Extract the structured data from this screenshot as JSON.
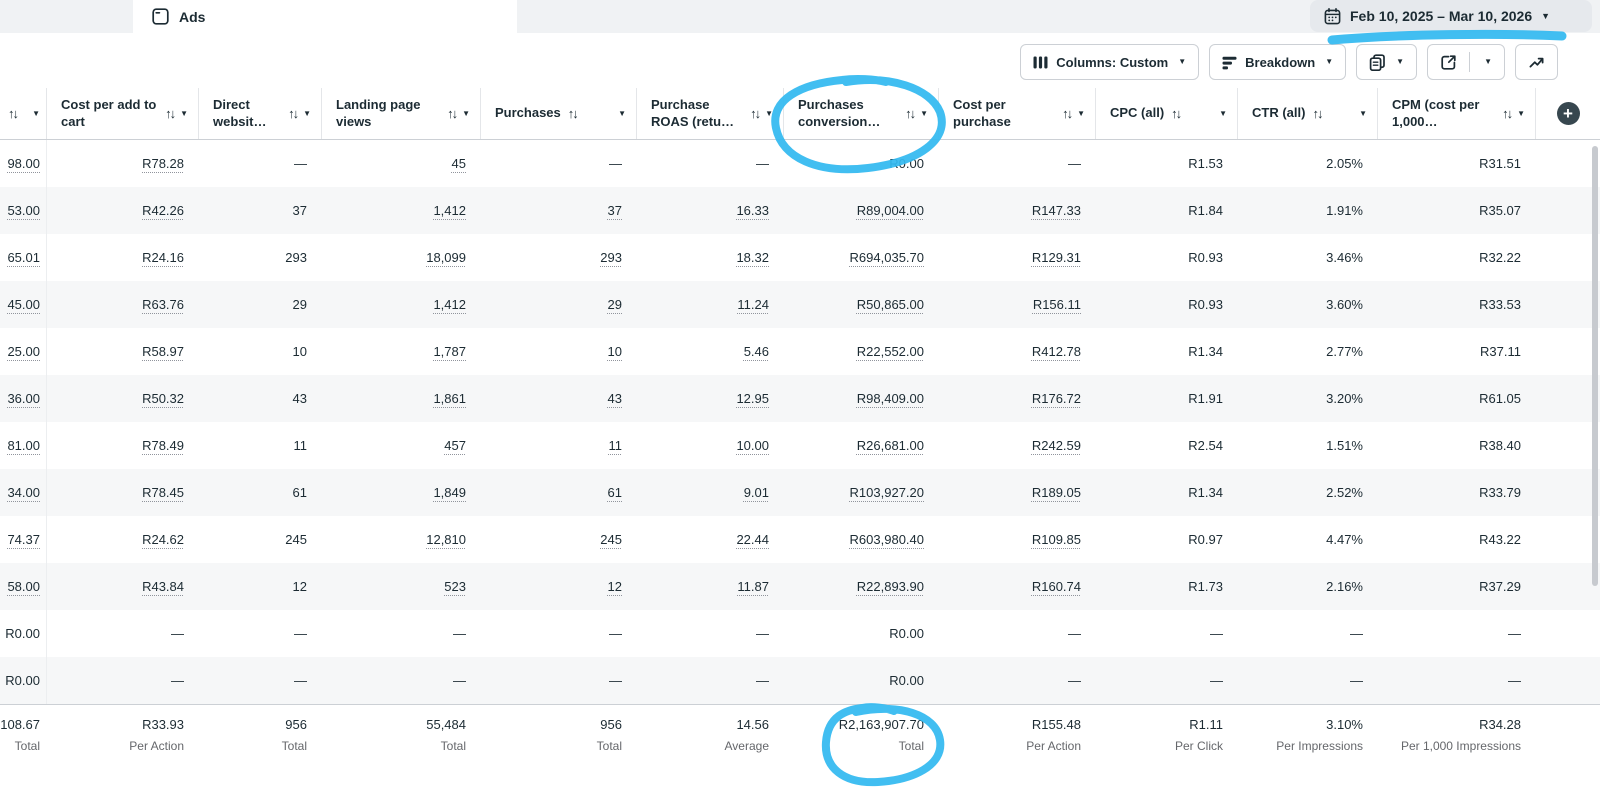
{
  "colors": {
    "annotation": "#33b9f0",
    "topbar_bg": "#f0f2f4",
    "stripe": "#f6f7f8",
    "header_text": "#1c2b33",
    "secondary_text": "#65676b"
  },
  "glyphs": {
    "sort": "↑↓",
    "caret": "▼",
    "plus": "+",
    "dash": "—"
  },
  "topbar": {
    "tab": {
      "label": "Ads",
      "icon": "ads-frame-icon"
    },
    "date_range": {
      "label": "Feb 10, 2025 – Mar 10, 2026",
      "icon": "calendar-icon"
    }
  },
  "toolbar": {
    "columns_label": "Columns: Custom",
    "breakdown_label": "Breakdown",
    "icons": [
      "columns-icon",
      "breakdown-icon",
      "duplicate-icon",
      "export-icon",
      "charts-icon"
    ]
  },
  "table": {
    "columns": [
      {
        "key": "frozen",
        "label": "",
        "linked": true
      },
      {
        "key": "cost-per-add-to-cart",
        "label": "Cost per add to cart",
        "linked": true
      },
      {
        "key": "direct-website",
        "label": "Direct websit…",
        "linked": false
      },
      {
        "key": "landing-page-views",
        "label": "Landing page views",
        "linked": true
      },
      {
        "key": "purchases",
        "label": "Purchases",
        "linked": true
      },
      {
        "key": "purchase-roas",
        "label": "Purchase ROAS (retu…",
        "linked": true
      },
      {
        "key": "purchases-conversion-value",
        "label": "Purchases conversion…",
        "linked": true
      },
      {
        "key": "cost-per-purchase",
        "label": "Cost per purchase",
        "linked": true
      },
      {
        "key": "cpc-all",
        "label": "CPC (all)",
        "linked": false
      },
      {
        "key": "ctr-all",
        "label": "CTR (all)",
        "linked": false
      },
      {
        "key": "cpm",
        "label": "CPM (cost per 1,000…",
        "linked": false
      }
    ],
    "rows": [
      [
        "98.00",
        "R78.28",
        "—",
        "45",
        "—",
        "—",
        "R0.00",
        "—",
        "R1.53",
        "2.05%",
        "R31.51"
      ],
      [
        "53.00",
        "R42.26",
        "37",
        "1,412",
        "37",
        "16.33",
        "R89,004.00",
        "R147.33",
        "R1.84",
        "1.91%",
        "R35.07"
      ],
      [
        "65.01",
        "R24.16",
        "293",
        "18,099",
        "293",
        "18.32",
        "R694,035.70",
        "R129.31",
        "R0.93",
        "3.46%",
        "R32.22"
      ],
      [
        "45.00",
        "R63.76",
        "29",
        "1,412",
        "29",
        "11.24",
        "R50,865.00",
        "R156.11",
        "R0.93",
        "3.60%",
        "R33.53"
      ],
      [
        "25.00",
        "R58.97",
        "10",
        "1,787",
        "10",
        "5.46",
        "R22,552.00",
        "R412.78",
        "R1.34",
        "2.77%",
        "R37.11"
      ],
      [
        "36.00",
        "R50.32",
        "43",
        "1,861",
        "43",
        "12.95",
        "R98,409.00",
        "R176.72",
        "R1.91",
        "3.20%",
        "R61.05"
      ],
      [
        "81.00",
        "R78.49",
        "11",
        "457",
        "11",
        "10.00",
        "R26,681.00",
        "R242.59",
        "R2.54",
        "1.51%",
        "R38.40"
      ],
      [
        "34.00",
        "R78.45",
        "61",
        "1,849",
        "61",
        "9.01",
        "R103,927.20",
        "R189.05",
        "R1.34",
        "2.52%",
        "R33.79"
      ],
      [
        "74.37",
        "R24.62",
        "245",
        "12,810",
        "245",
        "22.44",
        "R603,980.40",
        "R109.85",
        "R0.97",
        "4.47%",
        "R43.22"
      ],
      [
        "58.00",
        "R43.84",
        "12",
        "523",
        "12",
        "11.87",
        "R22,893.90",
        "R160.74",
        "R1.73",
        "2.16%",
        "R37.29"
      ],
      [
        "R0.00",
        "—",
        "—",
        "—",
        "—",
        "—",
        "R0.00",
        "—",
        "—",
        "—",
        "—"
      ],
      [
        "R0.00",
        "—",
        "—",
        "—",
        "—",
        "—",
        "R0.00",
        "—",
        "—",
        "—",
        "—"
      ]
    ],
    "totals": {
      "values": [
        "108.67",
        "R33.93",
        "956",
        "55,484",
        "956",
        "14.56",
        "R2,163,907.70",
        "R155.48",
        "R1.11",
        "3.10%",
        "R34.28"
      ],
      "labels": [
        "Total",
        "Per Action",
        "Total",
        "Total",
        "Total",
        "Average",
        "Total",
        "Per Action",
        "Per Click",
        "Per Impressions",
        "Per 1,000 Impressions"
      ]
    }
  },
  "annotations": [
    "circle-around-purchases-conversion-header",
    "underline-under-date-range",
    "circle-around-total-conversion-value"
  ]
}
